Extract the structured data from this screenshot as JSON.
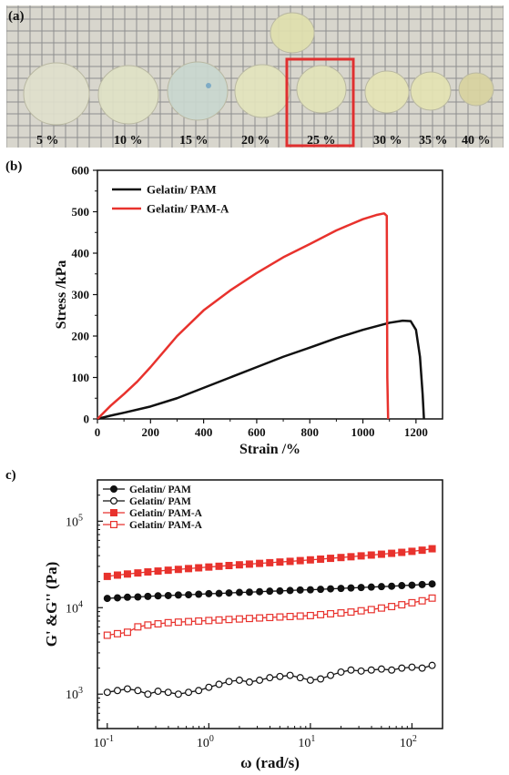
{
  "panel_a": {
    "label": "(a)",
    "concentrations": [
      "5 %",
      "10 %",
      "15 %",
      "20 %",
      "25 %",
      "30 %",
      "35 %",
      "40 %"
    ],
    "highlighted": "25 %",
    "highlight_color": "#e03030"
  },
  "chart_data": [
    {
      "type": "line",
      "panel": "(b)",
      "xlabel": "Strain /%",
      "ylabel": "Stress /kPa",
      "xlim": [
        0,
        1300
      ],
      "ylim": [
        0,
        600
      ],
      "xticks": [
        "0",
        "200",
        "400",
        "600",
        "800",
        "1000",
        "1200"
      ],
      "yticks": [
        "0",
        "100",
        "200",
        "300",
        "400",
        "500",
        "600"
      ],
      "legend_placement": "top-left",
      "series": [
        {
          "name": "Gelatin/ PAM",
          "color": "#111111",
          "x": [
            0,
            50,
            100,
            200,
            300,
            400,
            500,
            600,
            700,
            800,
            900,
            1000,
            1100,
            1150,
            1180,
            1200,
            1215,
            1225,
            1230
          ],
          "y": [
            0,
            8,
            15,
            30,
            50,
            75,
            100,
            125,
            150,
            172,
            195,
            215,
            232,
            237,
            236,
            215,
            150,
            60,
            0
          ]
        },
        {
          "name": "Gelatin/ PAM-A",
          "color": "#e8322d",
          "x": [
            0,
            50,
            100,
            150,
            200,
            300,
            400,
            500,
            600,
            700,
            800,
            900,
            1000,
            1050,
            1080,
            1090,
            1092,
            1095
          ],
          "y": [
            0,
            32,
            60,
            90,
            125,
            200,
            262,
            310,
            352,
            390,
            422,
            455,
            482,
            492,
            496,
            490,
            100,
            0
          ]
        }
      ]
    },
    {
      "type": "scatter",
      "panel": "c)",
      "xlabel": "ω (rad/s)",
      "ylabel": "G' &G'' (Pa)",
      "xscale": "log",
      "yscale": "log",
      "xlim": [
        0.08,
        200
      ],
      "ylim": [
        400,
        300000
      ],
      "xticks": [
        "10",
        "10",
        "10",
        "10"
      ],
      "xtick_exp": [
        "-1",
        "0",
        "1",
        "2"
      ],
      "yticks": [
        "10",
        "10",
        "10"
      ],
      "ytick_exp": [
        "3",
        "4",
        "5"
      ],
      "legend_placement": "top-left",
      "x": [
        0.1,
        0.126,
        0.158,
        0.2,
        0.251,
        0.316,
        0.398,
        0.501,
        0.631,
        0.794,
        1.0,
        1.26,
        1.58,
        2.0,
        2.51,
        3.16,
        3.98,
        5.01,
        6.31,
        7.94,
        10.0,
        12.6,
        15.8,
        20.0,
        25.1,
        31.6,
        39.8,
        50.1,
        63.1,
        79.4,
        100,
        126,
        158
      ],
      "series": [
        {
          "name": "Gelatin/ PAM",
          "marker": "filled-circle",
          "color": "#111111",
          "y": [
            12800,
            13000,
            13200,
            13300,
            13500,
            13700,
            13800,
            14000,
            14100,
            14300,
            14500,
            14600,
            14800,
            15000,
            15100,
            15300,
            15500,
            15600,
            15800,
            16000,
            16100,
            16300,
            16500,
            16700,
            16900,
            17100,
            17300,
            17500,
            17700,
            18000,
            18200,
            18500,
            18800
          ]
        },
        {
          "name": "Gelatin/ PAM",
          "marker": "open-circle",
          "color": "#111111",
          "y": [
            1050,
            1100,
            1150,
            1100,
            1000,
            1080,
            1050,
            1000,
            1050,
            1100,
            1200,
            1300,
            1400,
            1450,
            1380,
            1450,
            1550,
            1600,
            1650,
            1550,
            1450,
            1500,
            1650,
            1800,
            1900,
            1850,
            1900,
            1950,
            1900,
            2000,
            2050,
            2000,
            2150
          ]
        },
        {
          "name": "Gelatin/ PAM-A",
          "marker": "filled-square",
          "color": "#e8322d",
          "y": [
            23000,
            23800,
            24500,
            25200,
            25900,
            26500,
            27100,
            27700,
            28300,
            28900,
            29500,
            30100,
            30700,
            31300,
            31900,
            32500,
            33100,
            33700,
            34300,
            35000,
            35700,
            36400,
            37200,
            38000,
            38800,
            39700,
            40600,
            41500,
            42500,
            43600,
            44800,
            46200,
            48000
          ]
        },
        {
          "name": "Gelatin/ PAM-A",
          "marker": "open-square",
          "color": "#e8322d",
          "y": [
            4800,
            5000,
            5200,
            6000,
            6300,
            6500,
            6700,
            6800,
            6900,
            7000,
            7100,
            7200,
            7300,
            7400,
            7500,
            7600,
            7700,
            7800,
            7900,
            8000,
            8100,
            8300,
            8500,
            8700,
            8900,
            9200,
            9500,
            9900,
            10300,
            10800,
            11400,
            12000,
            12900
          ]
        }
      ]
    }
  ]
}
